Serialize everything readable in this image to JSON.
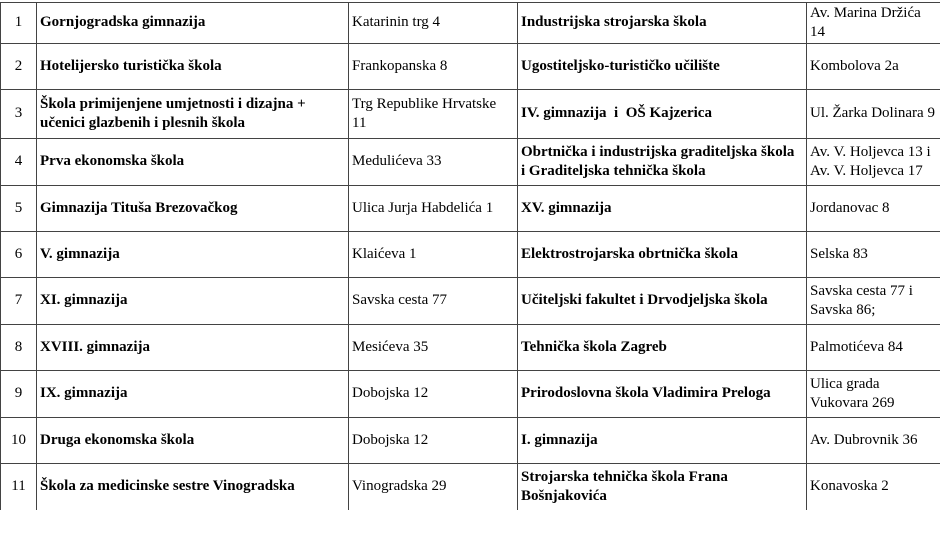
{
  "colors": {
    "border": "#434343",
    "text": "#000000",
    "background": "#ffffff"
  },
  "table": {
    "columns": [
      "row_number",
      "school_a",
      "address_a",
      "school_b",
      "address_b"
    ],
    "rows": [
      {
        "num": "1",
        "school_a": "Gornjogradska gimnazija",
        "addr_a": "Katarinin trg 4",
        "school_b": "Industrijska strojarska škola",
        "addr_b": "Av. Marina Držića 14"
      },
      {
        "num": "2",
        "school_a": "Hotelijersko turistička škola",
        "addr_a": "Frankopanska 8",
        "school_b": "Ugostiteljsko-turističko učilište",
        "addr_b": "Kombolova 2a"
      },
      {
        "num": "3",
        "school_a": "Škola primijenjene umjetnosti i dizajna + učenici glazbenih i plesnih škola",
        "addr_a": "Trg Republike Hrvatske 11",
        "school_b": "IV. gimnazija  i  OŠ Kajzerica",
        "addr_b": "Ul. Žarka Dolinara 9"
      },
      {
        "num": "4",
        "school_a": "Prva ekonomska škola",
        "addr_a": "Medulićeva 33",
        "school_b": "Obrtnička i industrijska graditeljska škola  i Graditeljska tehnička škola",
        "addr_b": "Av. V. Holjevca 13 i Av. V. Holjevca 17"
      },
      {
        "num": "5",
        "school_a": "Gimnazija Tituša Brezovačkog",
        "addr_a": "Ulica Jurja Habdelića 1",
        "school_b": "XV. gimnazija",
        "addr_b": "Jordanovac 8"
      },
      {
        "num": "6",
        "school_a": "V. gimnazija",
        "addr_a": "Klaićeva 1",
        "school_b": "Elektrostrojarska obrtnička škola",
        "addr_b": "Selska 83"
      },
      {
        "num": "7",
        "school_a": "XI. gimnazija",
        "addr_a": "Savska cesta 77",
        "school_b": "Učiteljski fakultet i Drvodjeljska škola",
        "addr_b": "Savska cesta 77 i Savska 86;"
      },
      {
        "num": "8",
        "school_a": "XVIII. gimnazija",
        "addr_a": "Mesićeva 35",
        "school_b": "Tehnička škola Zagreb",
        "addr_b": "Palmotićeva 84"
      },
      {
        "num": "9",
        "school_a": "IX. gimnazija",
        "addr_a": "Dobojska 12",
        "school_b": "Prirodoslovna škola Vladimira Preloga",
        "addr_b": "Ulica grada Vukovara 269"
      },
      {
        "num": "10",
        "school_a": "Druga ekonomska škola",
        "addr_a": "Dobojska 12",
        "school_b": "I. gimnazija",
        "addr_b": "Av. Dubrovnik 36"
      },
      {
        "num": "11",
        "school_a": "Škola za medicinske sestre Vinogradska",
        "addr_a": "Vinogradska 29",
        "school_b": "Strojarska tehnička škola Frana Bošnjakovića",
        "addr_b": "Konavoska 2"
      }
    ]
  }
}
